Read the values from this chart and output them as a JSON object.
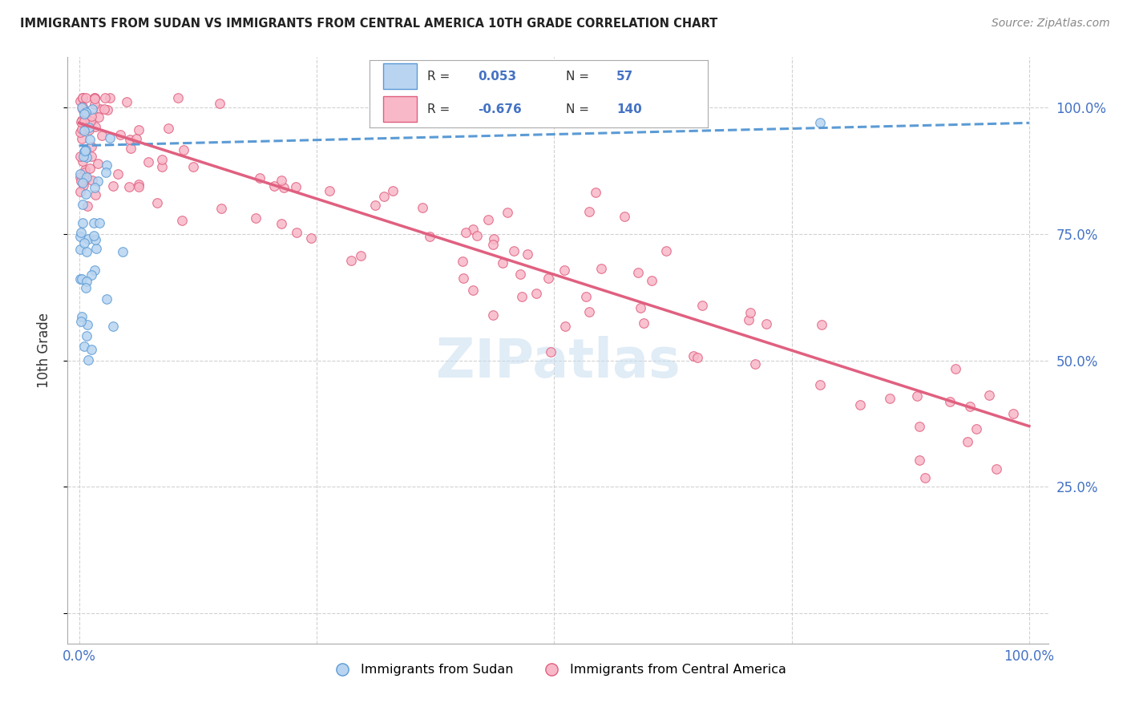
{
  "title": "IMMIGRANTS FROM SUDAN VS IMMIGRANTS FROM CENTRAL AMERICA 10TH GRADE CORRELATION CHART",
  "source": "Source: ZipAtlas.com",
  "ylabel": "10th Grade",
  "watermark": "ZIPatlas",
  "legend_sudan_r": "0.053",
  "legend_sudan_n": "57",
  "legend_central_r": "-0.676",
  "legend_central_n": "140",
  "sudan_fill": "#b8d4f0",
  "sudan_edge": "#5b9bd5",
  "central_fill": "#f8b8c8",
  "central_edge": "#e06080",
  "sudan_line": "#5b9bd5",
  "central_line": "#e06080",
  "background": "#ffffff",
  "grid_color": "#cccccc",
  "tick_color": "#4472c4",
  "axis_color": "#333333",
  "title_color": "#222222",
  "source_color": "#888888",
  "watermark_color": "#c8ddf0"
}
